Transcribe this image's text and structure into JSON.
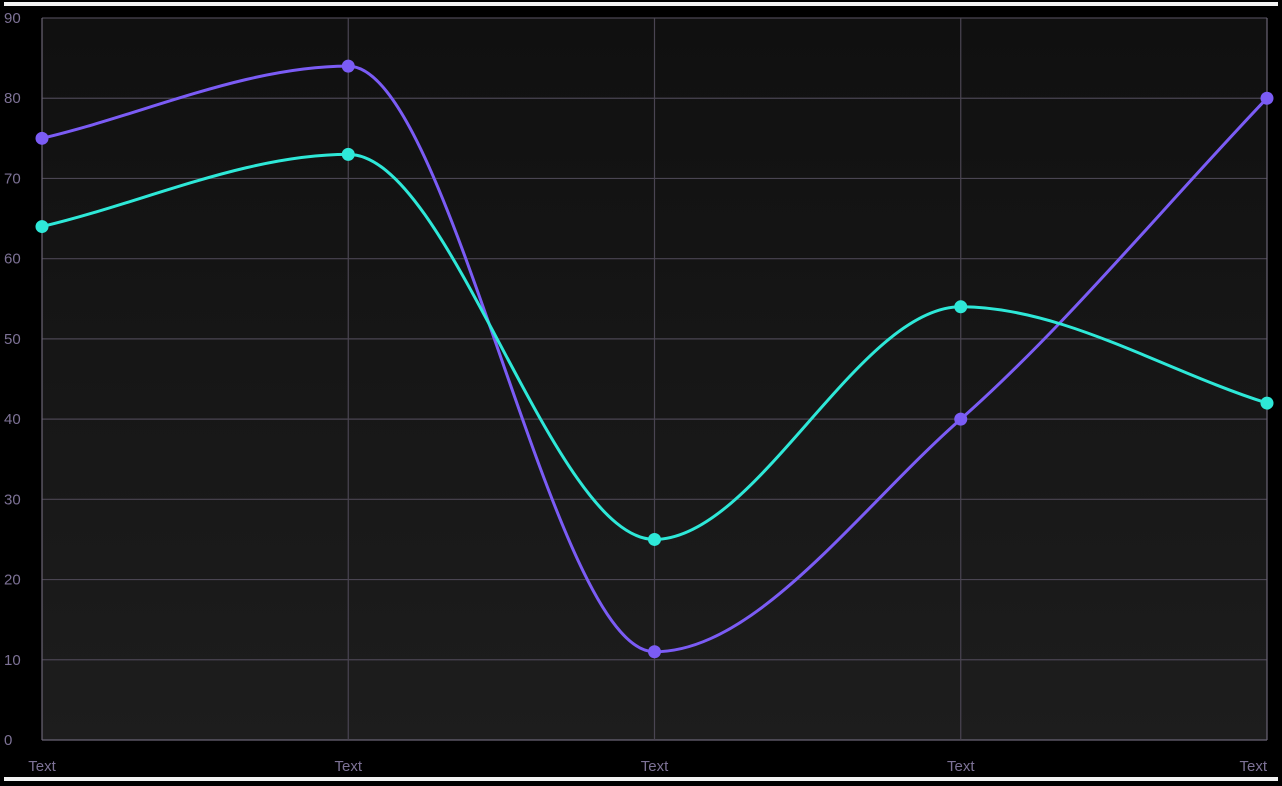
{
  "chart_data": {
    "type": "line",
    "categories": [
      "Text",
      "Text",
      "Text",
      "Text",
      "Text"
    ],
    "ylim": [
      0,
      90
    ],
    "yticks": [
      0,
      10,
      20,
      30,
      40,
      50,
      60,
      70,
      80,
      90
    ],
    "grid": true,
    "smooth": true,
    "series": [
      {
        "values": [
          75,
          84,
          11,
          40,
          80
        ],
        "color": "#7b5cf5"
      },
      {
        "values": [
          64,
          73,
          25,
          54,
          42
        ],
        "color": "#2ee8d8"
      }
    ],
    "colors": {
      "grid": "#4a4552",
      "axis": "#6a6475",
      "tick_text": "#7d7296",
      "plot_bg_top": "#101010",
      "plot_bg_bottom": "#1d1d1d"
    }
  }
}
